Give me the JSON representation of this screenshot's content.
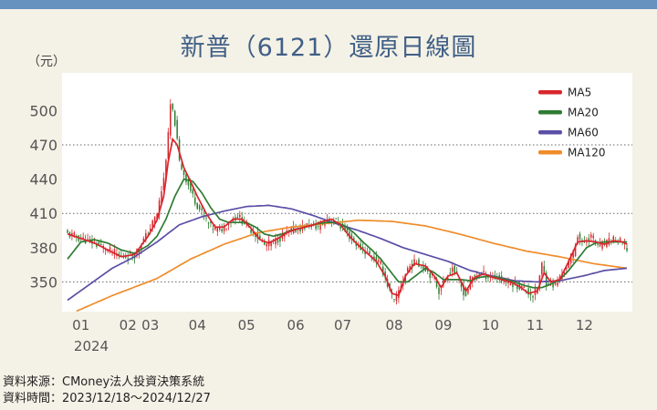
{
  "header": {
    "title": "新普（6121）還原日線圖",
    "unit": "（元）"
  },
  "source": {
    "line1": "資料來源：CMoney法人投資決策系統",
    "line2": "資料時間：2023/12/18～2024/12/27"
  },
  "colors": {
    "up": "#d7262c",
    "down": "#2e7d32",
    "ma5": "#d7262c",
    "ma20": "#2e7d32",
    "ma60": "#5a4fa6",
    "ma120": "#ef8c2a"
  },
  "chart_data": {
    "type": "line",
    "chart_kind": "candlestick",
    "title": "新普（6121）還原日線圖",
    "ylabel": "（元）",
    "ylim": [
      324,
      533
    ],
    "yticks": [
      350,
      380,
      410,
      440,
      470,
      500
    ],
    "ygrid_dotted": [
      350,
      410,
      470
    ],
    "legend": {
      "placement": "top-right",
      "entries": [
        "MA5",
        "MA20",
        "MA60",
        "MA120"
      ]
    },
    "x_month_ticks": [
      {
        "label": "01",
        "index": 6
      },
      {
        "label": "02",
        "index": 27
      },
      {
        "label": "03",
        "index": 37
      },
      {
        "label": "04",
        "index": 58
      },
      {
        "label": "05",
        "index": 80
      },
      {
        "label": "06",
        "index": 102
      },
      {
        "label": "07",
        "index": 123
      },
      {
        "label": "08",
        "index": 146
      },
      {
        "label": "09",
        "index": 168
      },
      {
        "label": "10",
        "index": 189
      },
      {
        "label": "11",
        "index": 209
      },
      {
        "label": "12",
        "index": 231
      }
    ],
    "year_label": "2024",
    "close_anchors": [
      [
        0,
        392
      ],
      [
        6,
        388
      ],
      [
        12,
        384
      ],
      [
        18,
        378
      ],
      [
        24,
        372
      ],
      [
        30,
        374
      ],
      [
        36,
        393
      ],
      [
        40,
        410
      ],
      [
        43,
        440
      ],
      [
        45,
        478
      ],
      [
        46,
        505
      ],
      [
        48,
        490
      ],
      [
        50,
        455
      ],
      [
        53,
        440
      ],
      [
        56,
        425
      ],
      [
        60,
        410
      ],
      [
        64,
        398
      ],
      [
        68,
        395
      ],
      [
        72,
        402
      ],
      [
        76,
        408
      ],
      [
        80,
        400
      ],
      [
        84,
        392
      ],
      [
        88,
        382
      ],
      [
        92,
        385
      ],
      [
        96,
        390
      ],
      [
        100,
        395
      ],
      [
        104,
        397
      ],
      [
        108,
        400
      ],
      [
        112,
        398
      ],
      [
        116,
        405
      ],
      [
        120,
        403
      ],
      [
        124,
        395
      ],
      [
        128,
        385
      ],
      [
        132,
        378
      ],
      [
        136,
        372
      ],
      [
        140,
        365
      ],
      [
        144,
        342
      ],
      [
        146,
        332
      ],
      [
        148,
        342
      ],
      [
        152,
        362
      ],
      [
        156,
        368
      ],
      [
        160,
        362
      ],
      [
        164,
        352
      ],
      [
        166,
        342
      ],
      [
        168,
        350
      ],
      [
        172,
        363
      ],
      [
        176,
        345
      ],
      [
        178,
        338
      ],
      [
        180,
        352
      ],
      [
        184,
        358
      ],
      [
        188,
        355
      ],
      [
        192,
        354
      ],
      [
        196,
        350
      ],
      [
        200,
        348
      ],
      [
        204,
        344
      ],
      [
        208,
        338
      ],
      [
        210,
        345
      ],
      [
        212,
        365
      ],
      [
        214,
        350
      ],
      [
        218,
        347
      ],
      [
        222,
        360
      ],
      [
        226,
        375
      ],
      [
        228,
        392
      ],
      [
        230,
        383
      ],
      [
        234,
        390
      ],
      [
        238,
        381
      ],
      [
        242,
        385
      ],
      [
        244,
        388
      ],
      [
        248,
        384
      ],
      [
        250,
        379
      ]
    ],
    "ma5_anchors": [
      [
        0,
        392
      ],
      [
        6,
        388
      ],
      [
        12,
        384
      ],
      [
        18,
        378
      ],
      [
        24,
        372
      ],
      [
        30,
        374
      ],
      [
        36,
        390
      ],
      [
        40,
        404
      ],
      [
        43,
        425
      ],
      [
        45,
        455
      ],
      [
        47,
        475
      ],
      [
        49,
        470
      ],
      [
        52,
        450
      ],
      [
        55,
        438
      ],
      [
        58,
        425
      ],
      [
        62,
        410
      ],
      [
        66,
        398
      ],
      [
        70,
        398
      ],
      [
        74,
        405
      ],
      [
        78,
        405
      ],
      [
        82,
        397
      ],
      [
        86,
        387
      ],
      [
        90,
        384
      ],
      [
        94,
        388
      ],
      [
        98,
        393
      ],
      [
        102,
        396
      ],
      [
        106,
        398
      ],
      [
        110,
        400
      ],
      [
        114,
        403
      ],
      [
        118,
        405
      ],
      [
        122,
        400
      ],
      [
        126,
        390
      ],
      [
        130,
        382
      ],
      [
        134,
        375
      ],
      [
        138,
        368
      ],
      [
        142,
        355
      ],
      [
        145,
        340
      ],
      [
        148,
        338
      ],
      [
        151,
        355
      ],
      [
        155,
        366
      ],
      [
        160,
        364
      ],
      [
        164,
        355
      ],
      [
        167,
        345
      ],
      [
        170,
        355
      ],
      [
        174,
        358
      ],
      [
        178,
        342
      ],
      [
        182,
        354
      ],
      [
        186,
        357
      ],
      [
        190,
        354
      ],
      [
        194,
        352
      ],
      [
        198,
        350
      ],
      [
        202,
        346
      ],
      [
        206,
        340
      ],
      [
        210,
        342
      ],
      [
        213,
        358
      ],
      [
        216,
        350
      ],
      [
        220,
        352
      ],
      [
        224,
        368
      ],
      [
        228,
        385
      ],
      [
        232,
        386
      ],
      [
        236,
        385
      ],
      [
        240,
        383
      ],
      [
        244,
        386
      ],
      [
        248,
        385
      ],
      [
        250,
        383
      ]
    ],
    "ma20_anchors": [
      [
        0,
        370
      ],
      [
        6,
        385
      ],
      [
        12,
        387
      ],
      [
        18,
        384
      ],
      [
        24,
        378
      ],
      [
        30,
        375
      ],
      [
        36,
        382
      ],
      [
        40,
        390
      ],
      [
        44,
        405
      ],
      [
        48,
        425
      ],
      [
        52,
        440
      ],
      [
        56,
        438
      ],
      [
        60,
        428
      ],
      [
        64,
        415
      ],
      [
        68,
        405
      ],
      [
        72,
        402
      ],
      [
        76,
        402
      ],
      [
        80,
        402
      ],
      [
        84,
        398
      ],
      [
        88,
        392
      ],
      [
        92,
        390
      ],
      [
        96,
        392
      ],
      [
        100,
        395
      ],
      [
        104,
        397
      ],
      [
        108,
        399
      ],
      [
        112,
        401
      ],
      [
        116,
        402
      ],
      [
        120,
        402
      ],
      [
        124,
        399
      ],
      [
        128,
        393
      ],
      [
        132,
        385
      ],
      [
        136,
        378
      ],
      [
        140,
        370
      ],
      [
        144,
        360
      ],
      [
        148,
        350
      ],
      [
        152,
        350
      ],
      [
        156,
        356
      ],
      [
        160,
        362
      ],
      [
        164,
        358
      ],
      [
        168,
        352
      ],
      [
        172,
        352
      ],
      [
        176,
        352
      ],
      [
        180,
        351
      ],
      [
        184,
        354
      ],
      [
        188,
        355
      ],
      [
        192,
        354
      ],
      [
        196,
        352
      ],
      [
        200,
        350
      ],
      [
        204,
        347
      ],
      [
        208,
        345
      ],
      [
        212,
        345
      ],
      [
        216,
        348
      ],
      [
        220,
        352
      ],
      [
        224,
        360
      ],
      [
        228,
        370
      ],
      [
        232,
        380
      ],
      [
        236,
        384
      ],
      [
        240,
        385
      ],
      [
        244,
        385
      ],
      [
        248,
        385
      ],
      [
        250,
        385
      ]
    ],
    "ma60_anchors": [
      [
        0,
        334
      ],
      [
        10,
        348
      ],
      [
        20,
        362
      ],
      [
        30,
        372
      ],
      [
        40,
        385
      ],
      [
        50,
        400
      ],
      [
        60,
        407
      ],
      [
        70,
        412
      ],
      [
        80,
        416
      ],
      [
        90,
        417
      ],
      [
        100,
        414
      ],
      [
        110,
        408
      ],
      [
        120,
        401
      ],
      [
        130,
        395
      ],
      [
        140,
        388
      ],
      [
        150,
        380
      ],
      [
        160,
        374
      ],
      [
        170,
        368
      ],
      [
        180,
        360
      ],
      [
        190,
        355
      ],
      [
        200,
        351
      ],
      [
        210,
        350
      ],
      [
        220,
        351
      ],
      [
        230,
        355
      ],
      [
        240,
        360
      ],
      [
        250,
        362
      ]
    ],
    "ma120_anchors": [
      [
        0,
        321
      ],
      [
        20,
        338
      ],
      [
        40,
        353
      ],
      [
        55,
        370
      ],
      [
        70,
        383
      ],
      [
        85,
        393
      ],
      [
        100,
        398
      ],
      [
        115,
        401
      ],
      [
        130,
        404
      ],
      [
        145,
        403
      ],
      [
        160,
        399
      ],
      [
        175,
        392
      ],
      [
        190,
        384
      ],
      [
        205,
        377
      ],
      [
        220,
        372
      ],
      [
        235,
        366
      ],
      [
        250,
        362
      ]
    ]
  }
}
